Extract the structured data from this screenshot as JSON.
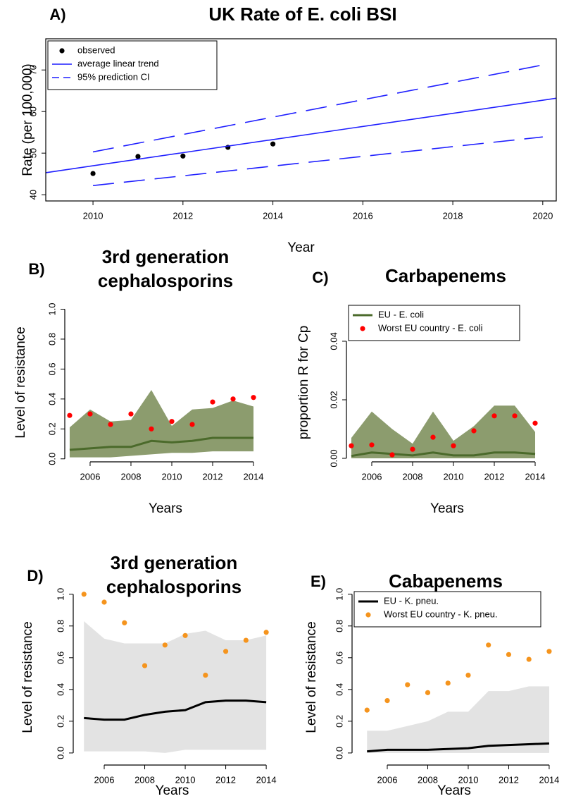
{
  "chart_data": [
    {
      "panel": "A)",
      "type": "line",
      "title": [
        "UK Rate of E. coli BSI"
      ],
      "xlabel": "Year",
      "ylabel": "Rate (per 100,000)",
      "xlim": [
        2008.95,
        2020.3
      ],
      "ylim": [
        38.5,
        77.5
      ],
      "xticks": [
        2010,
        2012,
        2014,
        2016,
        2018,
        2020
      ],
      "yticks": [
        40,
        50,
        60,
        70
      ],
      "box": true,
      "legend": "top-left",
      "series": [
        {
          "name": "observed",
          "kind": "points",
          "color": "#000000",
          "x": [
            2010,
            2011,
            2012,
            2013,
            2014
          ],
          "values": [
            45.1,
            49.2,
            49.3,
            51.4,
            52.2
          ]
        },
        {
          "name": "average linear trend",
          "kind": "line",
          "color": "#1f1fff",
          "x": [
            2008.95,
            2020.3
          ],
          "values": [
            45.3,
            63.2
          ]
        },
        {
          "name": "95% prediction CI",
          "kind": "line",
          "linestyle": "dashed",
          "color": "#1f1fff",
          "x": [
            2010,
            2020
          ],
          "values": [
            50.3,
            71.2
          ]
        },
        {
          "kind": "line",
          "linestyle": "dashed",
          "color": "#1f1fff",
          "x": [
            2010,
            2020
          ],
          "values": [
            42.2,
            53.9
          ]
        }
      ]
    },
    {
      "panel": "B)",
      "type": "line",
      "title": [
        "3rd generation",
        "cephalosporins"
      ],
      "xlabel": "Years",
      "ylabel": "Level of resistance",
      "xlim": [
        2004.76,
        2014.62
      ],
      "ylim": [
        -0.02,
        1.04
      ],
      "xticks": [
        2006,
        2008,
        2010,
        2012,
        2014
      ],
      "yticks": [
        {
          "value": 0,
          "label": "0.0"
        },
        {
          "value": 0.2,
          "label": "0.2"
        },
        {
          "value": 0.4,
          "label": "0.4"
        },
        {
          "value": 0.6,
          "label": "0.6"
        },
        {
          "value": 0.8,
          "label": "0.8"
        },
        {
          "value": 1,
          "label": "1.0"
        }
      ],
      "box": false,
      "x": [
        2005,
        2006,
        2007,
        2008,
        2009,
        2010,
        2011,
        2012,
        2013,
        2014
      ],
      "series": [
        {
          "kind": "band",
          "color": "#8c9c6e",
          "upper": [
            0.21,
            0.33,
            0.25,
            0.26,
            0.46,
            0.22,
            0.33,
            0.34,
            0.39,
            0.35
          ],
          "lower": [
            0.01,
            0.01,
            0.01,
            0.02,
            0.03,
            0.04,
            0.04,
            0.05,
            0.05,
            0.05
          ]
        },
        {
          "kind": "line",
          "color": "#4b6a2b",
          "values": [
            0.06,
            0.07,
            0.08,
            0.08,
            0.12,
            0.11,
            0.12,
            0.14,
            0.14,
            0.14
          ]
        },
        {
          "kind": "points",
          "color": "#ff0000",
          "values": [
            0.29,
            0.3,
            0.23,
            0.3,
            0.2,
            0.25,
            0.23,
            0.38,
            0.4,
            0.41
          ]
        }
      ]
    },
    {
      "panel": "C)",
      "type": "line",
      "title": [
        "Carbapenems"
      ],
      "xlabel": "Years",
      "ylabel": "proportion R for Cp",
      "xlim": [
        2004.76,
        2014.62
      ],
      "ylim": [
        -0.0012,
        0.053
      ],
      "xticks": [
        2006,
        2008,
        2010,
        2012,
        2014
      ],
      "yticks": [
        {
          "value": 0,
          "label": "0.00"
        },
        {
          "value": 0.02,
          "label": "0.02"
        },
        {
          "value": 0.04,
          "label": "0.04"
        }
      ],
      "box": false,
      "legend": "top-left",
      "x": [
        2005,
        2006,
        2007,
        2008,
        2009,
        2010,
        2011,
        2012,
        2013,
        2014
      ],
      "series": [
        {
          "kind": "band",
          "color": "#8c9c6e",
          "upper": [
            0.007,
            0.016,
            0.01,
            0.005,
            0.016,
            0.006,
            0.011,
            0.018,
            0.018,
            0.009
          ],
          "lower": [
            0,
            0,
            0,
            0,
            0,
            0,
            0,
            0,
            0,
            0
          ]
        },
        {
          "name": "EU - E. coli",
          "kind": "line",
          "color": "#4b6a2b",
          "values": [
            0.0008,
            0.002,
            0.0015,
            0.001,
            0.002,
            0.001,
            0.001,
            0.002,
            0.002,
            0.0015
          ]
        },
        {
          "name": "Worst EU country - E. coli",
          "kind": "points",
          "color": "#ff0000",
          "values": [
            0.0043,
            0.0046,
            0.0012,
            0.0031,
            0.0072,
            0.0043,
            0.0094,
            0.0145,
            0.0145,
            0.012
          ]
        }
      ]
    },
    {
      "panel": "D)",
      "type": "line",
      "title": [
        "3rd generation",
        "cephalosporins"
      ],
      "xlabel": "Years",
      "ylabel": "Level of resistance",
      "xlim": [
        2004.47,
        2014.24
      ],
      "ylim": [
        -0.076,
        1.03
      ],
      "xticks": [
        2006,
        2008,
        2010,
        2012,
        2014
      ],
      "yticks": [
        {
          "value": 0,
          "label": "0.0"
        },
        {
          "value": 0.2,
          "label": "0.2"
        },
        {
          "value": 0.4,
          "label": "0.4"
        },
        {
          "value": 0.6,
          "label": "0.6"
        },
        {
          "value": 0.8,
          "label": "0.8"
        },
        {
          "value": 1,
          "label": "1.0"
        }
      ],
      "box": false,
      "x": [
        2005,
        2006,
        2007,
        2008,
        2009,
        2010,
        2011,
        2012,
        2013,
        2014
      ],
      "series": [
        {
          "kind": "band",
          "color": "#e3e3e3",
          "upper": [
            0.83,
            0.72,
            0.69,
            0.69,
            0.69,
            0.75,
            0.77,
            0.71,
            0.71,
            0.74
          ],
          "lower": [
            0.01,
            0.01,
            0.01,
            0.01,
            0,
            0.02,
            0.02,
            0.02,
            0.02,
            0.02
          ]
        },
        {
          "kind": "line",
          "color": "#000000",
          "values": [
            0.22,
            0.21,
            0.21,
            0.24,
            0.26,
            0.27,
            0.32,
            0.33,
            0.33,
            0.32
          ]
        },
        {
          "kind": "points",
          "color": "#f5941d",
          "values": [
            1.0,
            0.95,
            0.82,
            0.55,
            0.68,
            0.74,
            0.49,
            0.64,
            0.71,
            0.76
          ]
        }
      ]
    },
    {
      "panel": "E)",
      "type": "line",
      "title": [
        "Cabapenems"
      ],
      "xlabel": "Years",
      "ylabel": "Level of resistance",
      "xlim": [
        2004.26,
        2014.35
      ],
      "ylim": [
        -0.076,
        1.03
      ],
      "xticks": [
        2006,
        2008,
        2010,
        2012,
        2014
      ],
      "yticks": [
        {
          "value": 0,
          "label": "0.0"
        },
        {
          "value": 0.2,
          "label": "0.2"
        },
        {
          "value": 0.4,
          "label": "0.4"
        },
        {
          "value": 0.6,
          "label": "0.6"
        },
        {
          "value": 0.8,
          "label": "0.8"
        },
        {
          "value": 1,
          "label": "1.0"
        }
      ],
      "box": false,
      "legend": "top-left",
      "x": [
        2005,
        2006,
        2007,
        2008,
        2009,
        2010,
        2011,
        2012,
        2013,
        2014
      ],
      "series": [
        {
          "kind": "band",
          "color": "#e3e3e3",
          "upper": [
            0.14,
            0.14,
            0.17,
            0.2,
            0.26,
            0.26,
            0.39,
            0.39,
            0.42,
            0.42
          ],
          "lower": [
            0,
            0,
            0,
            0,
            0,
            0,
            0,
            0,
            0,
            0
          ]
        },
        {
          "name": "EU - K. pneu.",
          "kind": "line",
          "color": "#000000",
          "values": [
            0.01,
            0.02,
            0.02,
            0.02,
            0.025,
            0.03,
            0.045,
            0.05,
            0.055,
            0.06
          ]
        },
        {
          "name": "Worst EU country - K. pneu.",
          "kind": "points",
          "color": "#f5941d",
          "values": [
            0.27,
            0.33,
            0.43,
            0.38,
            0.44,
            0.49,
            0.68,
            0.62,
            0.59,
            0.64
          ]
        }
      ]
    }
  ]
}
